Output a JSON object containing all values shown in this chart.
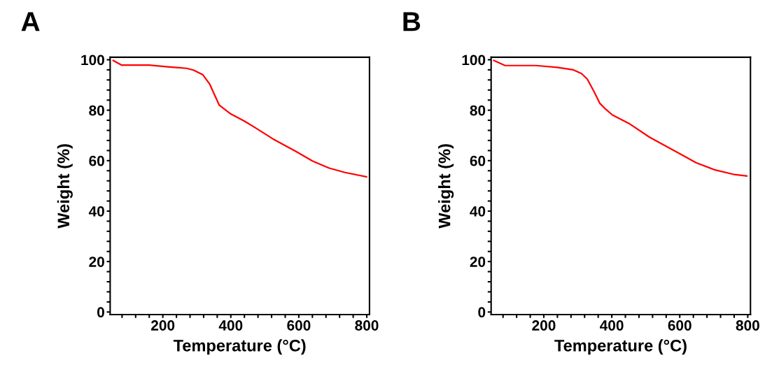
{
  "chart_data": [
    {
      "type": "line",
      "title": "A",
      "xlabel": "Temperature (°C)",
      "ylabel": "Weight (%)",
      "xlim": [
        45,
        808
      ],
      "ylim": [
        -1,
        101
      ],
      "xticks": [
        {
          "value": 80,
          "label": null
        },
        {
          "value": 120,
          "label": null
        },
        {
          "value": 160,
          "label": null
        },
        200,
        {
          "value": 240,
          "label": null
        },
        {
          "value": 280,
          "label": null
        },
        {
          "value": 320,
          "label": null
        },
        {
          "value": 360,
          "label": null
        },
        400,
        {
          "value": 440,
          "label": null
        },
        {
          "value": 480,
          "label": null
        },
        {
          "value": 520,
          "label": null
        },
        {
          "value": 560,
          "label": null
        },
        600,
        {
          "value": 640,
          "label": null
        },
        {
          "value": 680,
          "label": null
        },
        {
          "value": 720,
          "label": null
        },
        {
          "value": 760,
          "label": null
        },
        800
      ],
      "yticks": [
        0,
        {
          "value": 4,
          "label": null
        },
        {
          "value": 8,
          "label": null
        },
        {
          "value": 12,
          "label": null
        },
        {
          "value": 16,
          "label": null
        },
        20,
        {
          "value": 24,
          "label": null
        },
        {
          "value": 28,
          "label": null
        },
        {
          "value": 32,
          "label": null
        },
        {
          "value": 36,
          "label": null
        },
        40,
        {
          "value": 44,
          "label": null
        },
        {
          "value": 48,
          "label": null
        },
        {
          "value": 52,
          "label": null
        },
        {
          "value": 56,
          "label": null
        },
        60,
        {
          "value": 64,
          "label": null
        },
        {
          "value": 68,
          "label": null
        },
        {
          "value": 72,
          "label": null
        },
        {
          "value": 76,
          "label": null
        },
        80,
        {
          "value": 84,
          "label": null
        },
        {
          "value": 88,
          "label": null
        },
        {
          "value": 92,
          "label": null
        },
        {
          "value": 96,
          "label": null
        },
        100
      ],
      "grid": false,
      "legend": false,
      "marker": "none",
      "line_style": "solid",
      "series": [
        {
          "color": "#ff0000",
          "x": [
            54,
            78,
            160,
            215,
            270,
            290,
            318,
            338,
            366,
            400,
            441,
            475,
            523,
            592,
            640,
            688,
            736,
            777,
            799
          ],
          "values": [
            99.7,
            97.9,
            97.9,
            97.2,
            96.6,
            95.9,
            94.0,
            90.3,
            82.0,
            78.5,
            75.6,
            72.8,
            68.7,
            63.6,
            59.9,
            57.1,
            55.3,
            54.2,
            53.6
          ]
        }
      ]
    },
    {
      "type": "line",
      "title": "B",
      "xlabel": "Temperature (°C)",
      "ylabel": "Weight (%)",
      "xlim": [
        45,
        808
      ],
      "ylim": [
        -1,
        101
      ],
      "xticks": [
        {
          "value": 80,
          "label": null
        },
        {
          "value": 120,
          "label": null
        },
        {
          "value": 160,
          "label": null
        },
        200,
        {
          "value": 240,
          "label": null
        },
        {
          "value": 280,
          "label": null
        },
        {
          "value": 320,
          "label": null
        },
        {
          "value": 360,
          "label": null
        },
        400,
        {
          "value": 440,
          "label": null
        },
        {
          "value": 480,
          "label": null
        },
        {
          "value": 520,
          "label": null
        },
        {
          "value": 560,
          "label": null
        },
        600,
        {
          "value": 640,
          "label": null
        },
        {
          "value": 680,
          "label": null
        },
        {
          "value": 720,
          "label": null
        },
        {
          "value": 760,
          "label": null
        },
        800
      ],
      "yticks": [
        0,
        {
          "value": 4,
          "label": null
        },
        {
          "value": 8,
          "label": null
        },
        {
          "value": 12,
          "label": null
        },
        {
          "value": 16,
          "label": null
        },
        20,
        {
          "value": 24,
          "label": null
        },
        {
          "value": 28,
          "label": null
        },
        {
          "value": 32,
          "label": null
        },
        {
          "value": 36,
          "label": null
        },
        40,
        {
          "value": 44,
          "label": null
        },
        {
          "value": 48,
          "label": null
        },
        {
          "value": 52,
          "label": null
        },
        {
          "value": 56,
          "label": null
        },
        60,
        {
          "value": 64,
          "label": null
        },
        {
          "value": 68,
          "label": null
        },
        {
          "value": 72,
          "label": null
        },
        {
          "value": 76,
          "label": null
        },
        80,
        {
          "value": 84,
          "label": null
        },
        {
          "value": 88,
          "label": null
        },
        {
          "value": 92,
          "label": null
        },
        {
          "value": 96,
          "label": null
        },
        100
      ],
      "grid": false,
      "legend": false,
      "marker": "none",
      "line_style": "solid",
      "series": [
        {
          "color": "#ff0000",
          "x": [
            53,
            86,
            177,
            239,
            287,
            311,
            328,
            348,
            365,
            382,
            402,
            450,
            511,
            593,
            648,
            702,
            757,
            797
          ],
          "values": [
            99.7,
            97.7,
            97.7,
            97.0,
            96.0,
            94.5,
            92.3,
            87.3,
            82.7,
            80.4,
            78.1,
            74.8,
            69.3,
            63.3,
            59.2,
            56.4,
            54.6,
            53.9
          ]
        }
      ]
    }
  ]
}
